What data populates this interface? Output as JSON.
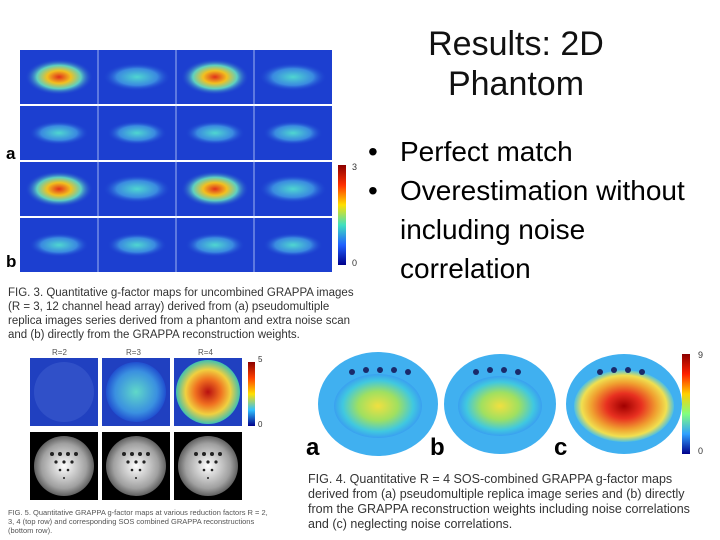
{
  "slide": {
    "title_line1": "Results: 2D",
    "title_line2": "Phantom",
    "bullets": [
      "Perfect match",
      "Overestimation without including noise correlation"
    ]
  },
  "fig3": {
    "label_a": "a",
    "label_b": "b",
    "colorbar_max": "3",
    "colorbar_min": "0",
    "caption": "FIG. 3. Quantitative g-factor maps for uncombined GRAPPA images (R = 3, 12 channel head array) derived from (a) pseudomultiple replica images series derived from a phantom and extra noise scan and (b) directly from the GRAPPA reconstruction weights."
  },
  "fig5": {
    "r_labels": [
      "R=2",
      "R=3",
      "R=4"
    ],
    "colorbar_max": "5",
    "colorbar_min": "0",
    "caption": "FIG. 5. Quantitative GRAPPA g-factor maps at various reduction factors R = 2, 3, 4 (top row) and corresponding SOS combined GRAPPA reconstructions (bottom row)."
  },
  "fig4": {
    "label_a": "a",
    "label_b": "b",
    "label_c": "c",
    "colorbar_max": "9",
    "colorbar_min": "0",
    "caption": "FIG. 4. Quantitative R = 4 SOS-combined GRAPPA g-factor maps derived from (a) pseudomultiple replica image series and (b) directly from the GRAPPA reconstruction weights including noise correlations and (c) neglecting noise correlations."
  },
  "colors": {
    "map_background": "#1c3fd0",
    "colorbar_top": "#8b0000",
    "colorbar_bottom": "#00008b"
  }
}
